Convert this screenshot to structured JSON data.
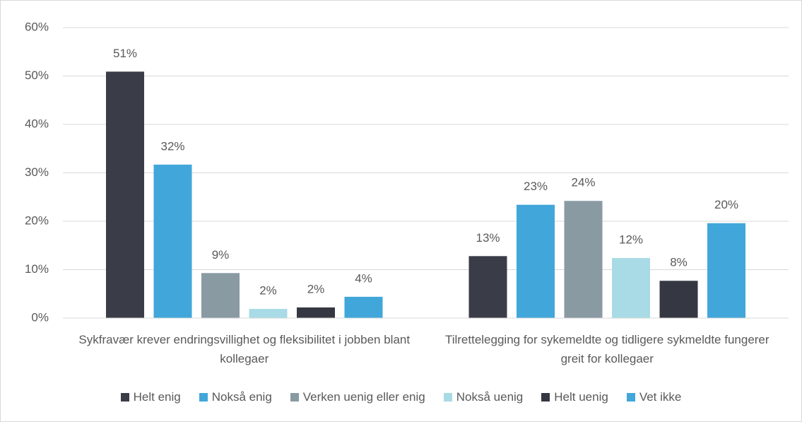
{
  "chart_data": {
    "type": "bar",
    "categories": [
      "Sykfravær krever endringsvillighet og fleksibilitet i jobben blant kollegaer",
      "Tilrettelegging for sykemeldte og tidligere sykmeldte fungerer greit for kollegaer"
    ],
    "series": [
      {
        "name": "Helt enig",
        "color": "#3a3d47",
        "values": [
          50.9,
          12.8
        ],
        "value_labels": [
          "51%",
          "13%"
        ]
      },
      {
        "name": "Nokså enig",
        "color": "#41a6da",
        "values": [
          31.7,
          23.4
        ],
        "value_labels": [
          "32%",
          "23%"
        ]
      },
      {
        "name": "Verken uenig eller enig",
        "color": "#8a9aa3",
        "values": [
          9.3,
          24.2
        ],
        "value_labels": [
          "9%",
          "24%"
        ]
      },
      {
        "name": "Nokså uenig",
        "color": "#a8dbe5",
        "values": [
          1.9,
          12.4
        ],
        "value_labels": [
          "2%",
          "12%"
        ]
      },
      {
        "name": "Helt uenig",
        "color": "#353842",
        "values": [
          2.2,
          7.7
        ],
        "value_labels": [
          "2%",
          "8%"
        ]
      },
      {
        "name": "Vet ikke",
        "color": "#41a6da",
        "values": [
          4.4,
          19.6
        ],
        "value_labels": [
          "4%",
          "20%"
        ]
      }
    ],
    "ylim": [
      0,
      60
    ],
    "yticks": [
      {
        "value": 0,
        "label": "0%"
      },
      {
        "value": 10,
        "label": "10%"
      },
      {
        "value": 20,
        "label": "20%"
      },
      {
        "value": 30,
        "label": "30%"
      },
      {
        "value": 40,
        "label": "40%"
      },
      {
        "value": 50,
        "label": "50%"
      },
      {
        "value": 60,
        "label": "60%"
      }
    ],
    "grid": true
  }
}
